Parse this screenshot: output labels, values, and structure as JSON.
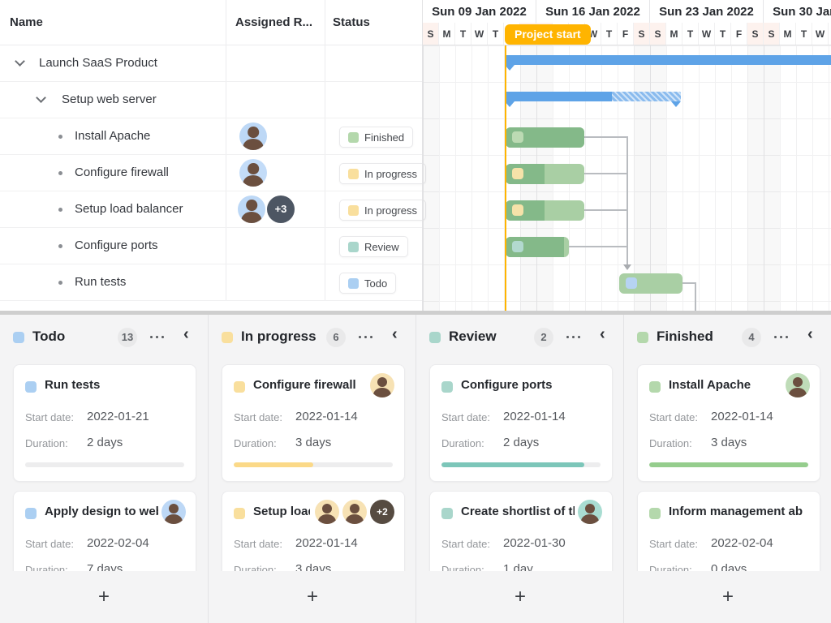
{
  "colors": {
    "accent_orange": "#FFB400",
    "summary_blue": "#5EA3E7",
    "task_green": "#84B989",
    "task_green_light": "#A9CFA4",
    "status_todo": "#ABCFF2",
    "status_in_progress": "#F9DF9D",
    "status_review": "#A9D6CB",
    "status_finished": "#B4D8AC",
    "kanban_background": "#F4F4F5"
  },
  "gantt": {
    "header": {
      "name": "Name",
      "assigned": "Assigned R...",
      "status": "Status"
    },
    "weeks": [
      "Sun 09 Jan 2022",
      "Sun 16 Jan 2022",
      "Sun 23 Jan 2022",
      "Sun 30 Jan 2022"
    ],
    "days": [
      "S",
      "M",
      "T",
      "W",
      "T",
      "F",
      "S",
      "S",
      "M",
      "T",
      "W",
      "T",
      "F",
      "S",
      "S",
      "M",
      "T",
      "W",
      "T",
      "F",
      "S",
      "S",
      "M",
      "T",
      "W",
      "T"
    ],
    "marker_label": "Project start",
    "rows": [
      {
        "name": "Launch SaaS Product",
        "level": 1,
        "type": "project"
      },
      {
        "name": "Setup web server",
        "level": 2,
        "type": "project"
      },
      {
        "name": "Install Apache",
        "level": 3,
        "status": "Finished"
      },
      {
        "name": "Configure firewall",
        "level": 3,
        "status": "In progress"
      },
      {
        "name": "Setup load balancer",
        "level": 3,
        "status": "In progress",
        "assignee_overflow": "+3"
      },
      {
        "name": "Configure ports",
        "level": 3,
        "status": "Review"
      },
      {
        "name": "Run tests",
        "level": 3,
        "status": "Todo"
      }
    ]
  },
  "kanban": {
    "add_label": "+",
    "field_labels": {
      "start": "Start date:",
      "duration": "Duration:"
    },
    "columns": [
      {
        "title": "Todo",
        "count": "13",
        "cards": [
          {
            "title": "Run tests",
            "start": "2022-01-21",
            "duration": "2 days",
            "progress": 0
          },
          {
            "title": "Apply design to web",
            "start": "2022-02-04",
            "duration": "7 days"
          }
        ]
      },
      {
        "title": "In progress",
        "count": "6",
        "cards": [
          {
            "title": "Configure firewall",
            "start": "2022-01-14",
            "duration": "3 days",
            "progress": 50
          },
          {
            "title": "Setup load",
            "start": "2022-01-14",
            "duration": "3 days",
            "avatars_overflow": "+2"
          }
        ]
      },
      {
        "title": "Review",
        "count": "2",
        "cards": [
          {
            "title": "Configure ports",
            "start": "2022-01-14",
            "duration": "2 days",
            "progress": 90
          },
          {
            "title": "Create shortlist of th",
            "start": "2022-01-30",
            "duration": "1 day"
          }
        ]
      },
      {
        "title": "Finished",
        "count": "4",
        "cards": [
          {
            "title": "Install Apache",
            "start": "2022-01-14",
            "duration": "3 days",
            "progress": 100
          },
          {
            "title": "Inform management ab",
            "start": "2022-02-04",
            "duration": "0 days"
          }
        ]
      }
    ]
  }
}
